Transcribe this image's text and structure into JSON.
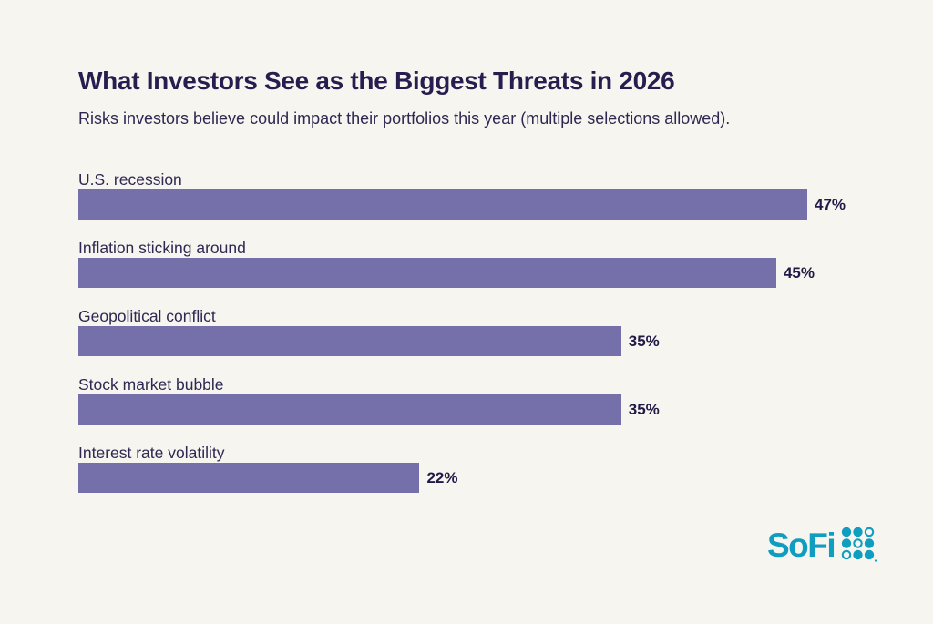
{
  "header": {
    "title": "What Investors See as the Biggest Threats in 2026",
    "subtitle": "Risks investors believe could impact their portfolios this year (multiple selections allowed)."
  },
  "chart_data": {
    "type": "bar",
    "orientation": "horizontal",
    "title": "What Investors See as the Biggest Threats in 2026",
    "subtitle": "Risks investors believe could impact their portfolios this year (multiple selections allowed).",
    "categories": [
      "U.S. recession",
      "Inflation sticking around",
      "Geopolitical conflict",
      "Stock market bubble",
      "Interest rate volatility"
    ],
    "values": [
      47,
      45,
      35,
      35,
      22
    ],
    "value_labels": [
      "47%",
      "45%",
      "35%",
      "35%",
      "22%"
    ],
    "xlabel": "",
    "ylabel": "",
    "xlim": [
      0,
      47
    ],
    "grid": false,
    "legend": "none",
    "bar_color": "#7570A9",
    "value_label_position": "right-of-bar"
  },
  "branding": {
    "logo_text": "SoFi",
    "trademark": "®"
  },
  "colors": {
    "background": "#F7F5EF",
    "title_text": "#261E4E",
    "body_text": "#2E2852",
    "bar": "#7570A9",
    "logo": "#0F9DC0"
  }
}
